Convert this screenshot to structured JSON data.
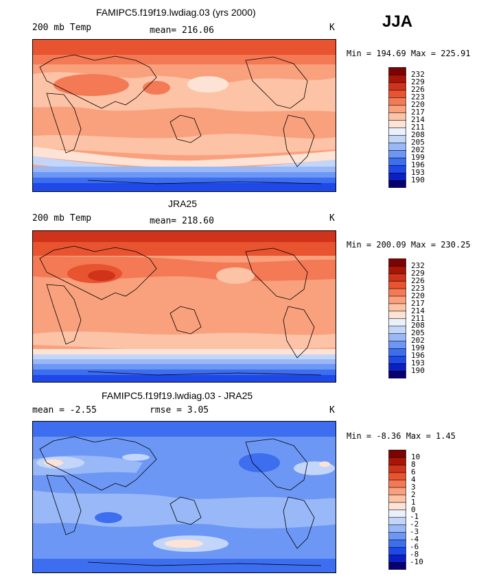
{
  "season": "JJA",
  "panels": [
    {
      "title": "FAMIPC5.f19f19.lwdiag.03 (yrs 2000)",
      "left_label": "200 mb Temp",
      "stat_label": "mean= 216.06",
      "units": "K",
      "minmax": "Min = 194.69 Max = 225.91"
    },
    {
      "title": "JRA25",
      "left_label": "200 mb Temp",
      "stat_label": "mean= 218.60",
      "units": "K",
      "minmax": "Min = 200.09 Max = 230.25"
    },
    {
      "title": "FAMIPC5.f19f19.lwdiag.03 - JRA25",
      "left_label": "mean =  -2.55",
      "stat_label": "rmse =   3.05",
      "units": "K",
      "minmax": "Min =  -8.36 Max =   1.45"
    }
  ],
  "chart_data": [
    {
      "type": "heatmap",
      "title": "FAMIPC5.f19f19.lwdiag.03 (yrs 2000)",
      "variable": "200 mb Temp",
      "units": "K",
      "mean": 216.06,
      "min": 194.69,
      "max": 225.91,
      "levels": [
        190,
        193,
        196,
        199,
        202,
        205,
        208,
        211,
        214,
        217,
        220,
        223,
        226,
        229,
        232
      ],
      "colors": [
        "#08006e",
        "#0a1fc4",
        "#1f48e8",
        "#3d6ef0",
        "#6d97f5",
        "#98b8f7",
        "#c3d6fa",
        "#eaf1fd",
        "#fde3d5",
        "#fcc3a6",
        "#f9a07d",
        "#f47955",
        "#e85330",
        "#cf3319",
        "#a81507",
        "#7c0303"
      ]
    },
    {
      "type": "heatmap",
      "title": "JRA25",
      "variable": "200 mb Temp",
      "units": "K",
      "mean": 218.6,
      "min": 200.09,
      "max": 230.25,
      "levels": [
        190,
        193,
        196,
        199,
        202,
        205,
        208,
        211,
        214,
        217,
        220,
        223,
        226,
        229,
        232
      ],
      "colors": [
        "#08006e",
        "#0a1fc4",
        "#1f48e8",
        "#3d6ef0",
        "#6d97f5",
        "#98b8f7",
        "#c3d6fa",
        "#eaf1fd",
        "#fde3d5",
        "#fcc3a6",
        "#f9a07d",
        "#f47955",
        "#e85330",
        "#cf3319",
        "#a81507",
        "#7c0303"
      ]
    },
    {
      "type": "heatmap",
      "title": "FAMIPC5.f19f19.lwdiag.03 - JRA25",
      "units": "K",
      "mean": -2.55,
      "rmse": 3.05,
      "min": -8.36,
      "max": 1.45,
      "levels": [
        -10,
        -8,
        -6,
        -4,
        -3,
        -2,
        -1,
        0,
        1,
        2,
        3,
        4,
        6,
        8,
        10
      ],
      "colors": [
        "#08006e",
        "#0a1fc4",
        "#1f48e8",
        "#3d6ef0",
        "#6d97f5",
        "#98b8f7",
        "#c3d6fa",
        "#eaf1fd",
        "#fde3d5",
        "#fcc3a6",
        "#f9a07d",
        "#f47955",
        "#e85330",
        "#cf3319",
        "#a81507",
        "#7c0303"
      ]
    }
  ]
}
